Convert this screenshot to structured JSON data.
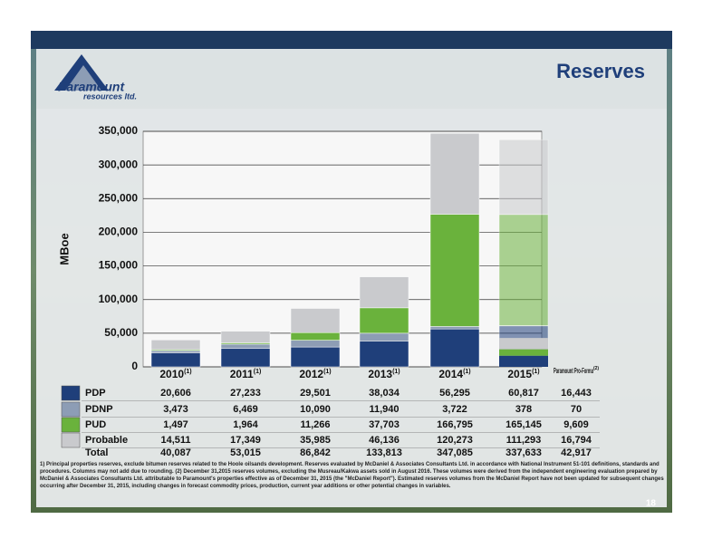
{
  "logo": {
    "name": "Paramount",
    "sub": "resources ltd."
  },
  "page_number": "18",
  "chart_data": {
    "type": "stacked_bar",
    "title": "Reserves",
    "y_label": "MBoe",
    "categories": [
      "2010",
      "2011",
      "2012",
      "2013",
      "2014",
      "2015"
    ],
    "category_note": "(1)",
    "ylim": [
      0,
      350000
    ],
    "yticks": [
      0,
      {
        "value": 50000,
        "label": "50,000"
      },
      {
        "value": 100000,
        "label": "100,000"
      },
      {
        "value": 150000,
        "label": "150,000"
      },
      {
        "value": 200000,
        "label": "200,000"
      },
      {
        "value": 250000,
        "label": "250,000"
      },
      {
        "value": 300000,
        "label": "300,000"
      },
      {
        "value": 350000,
        "label": "350,000"
      }
    ],
    "grid": true,
    "series": [
      {
        "name": "PDP",
        "color": "#1f3f7a",
        "values": [
          20606,
          27233,
          29501,
          38034,
          56295,
          60817
        ],
        "value_labels": [
          "20,606",
          "27,233",
          "29,501",
          "38,034",
          "56,295",
          "60,817"
        ]
      },
      {
        "name": "PDNP",
        "color": "#8d9db5",
        "values": [
          3473,
          6469,
          10090,
          11940,
          3722,
          378
        ],
        "value_labels": [
          "3,473",
          "6,469",
          "10,090",
          "11,940",
          "3,722",
          "378"
        ]
      },
      {
        "name": "PUD",
        "color": "#6ab23c",
        "values": [
          1497,
          1964,
          11266,
          37703,
          166795,
          165145
        ],
        "value_labels": [
          "1,497",
          "1,964",
          "11,266",
          "37,703",
          "166,795",
          "165,145"
        ]
      },
      {
        "name": "Probable",
        "color": "#c9cacd",
        "values": [
          14511,
          17349,
          35985,
          46136,
          120273,
          111293
        ],
        "value_labels": [
          "14,511",
          "17,349",
          "35,985",
          "46,136",
          "120,273",
          "111,293"
        ]
      }
    ],
    "totals": {
      "name": "Total",
      "labels": [
        "40,087",
        "53,015",
        "86,842",
        "133,813",
        "347,085",
        "337,633"
      ]
    },
    "pro_forma": {
      "name": "Paramount Pro-Forma",
      "note": "(2)",
      "values": [
        16443,
        70,
        9609,
        16794
      ],
      "value_labels": [
        "16,443",
        "70",
        "9,609",
        "16,794"
      ],
      "total_label": "42,917"
    },
    "footnote": "1) Principal properties reserves, exclude bitumen reserves related to the Hoole oilsands development. Reserves evaluated by McDaniel & Associates Consultants Ltd. in accordance with National Instrument 51-101 definitions, standards and procedures. Columns may not add due to rounding. (2) December 31,2015 reserves volumes, excluding the Musreau/Kakwa assets sold in August 2016. These volumes were derived from the independent engineering evaluation prepared by McDaniel & Associates Consultants Ltd. attributable to Paramount's properties effective as of December 31, 2015 (the \"McDaniel Report\"). Estimated reserves volumes from the McDaniel Report have not been updated for subsequent changes occurring after December 31, 2015, including changes in forecast commodity prices, production, current year additions or other potential changes in variables."
  }
}
